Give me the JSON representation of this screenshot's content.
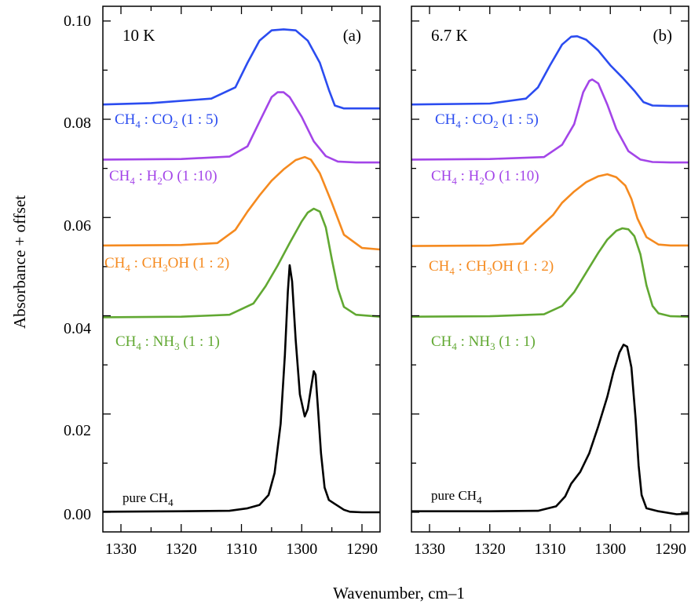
{
  "chart_data": [
    {
      "type": "line",
      "panel_label": "(a)",
      "temperature": "10 K",
      "ylabel": "Absorbance + offset",
      "xlim": [
        1333,
        1287
      ],
      "ylim": [
        -0.004,
        0.103
      ],
      "x_ticks": [
        1330,
        1320,
        1310,
        1300,
        1290
      ],
      "y_ticks": [
        "0.00",
        "0.02",
        "0.04",
        "0.06",
        "0.08",
        "0.10"
      ],
      "series": [
        {
          "name": "CH4 : CO2 (1 : 5)",
          "color": "#2b4cf0",
          "x": [
            1333,
            1325,
            1315,
            1311,
            1309,
            1307,
            1305,
            1303,
            1301,
            1299,
            1297,
            1295.5,
            1294.5,
            1293,
            1287
          ],
          "y": [
            0.083,
            0.0833,
            0.0842,
            0.0865,
            0.0915,
            0.096,
            0.0981,
            0.0983,
            0.0981,
            0.096,
            0.0915,
            0.086,
            0.0828,
            0.0822,
            0.0822
          ]
        },
        {
          "name": "CH4 : H2O (1 :10)",
          "color": "#a345e8",
          "x": [
            1333,
            1320,
            1312,
            1309,
            1307,
            1305,
            1304,
            1303,
            1302,
            1300,
            1298,
            1296,
            1294,
            1291,
            1287
          ],
          "y": [
            0.0718,
            0.0719,
            0.0724,
            0.0745,
            0.0795,
            0.0845,
            0.0855,
            0.0855,
            0.0845,
            0.0805,
            0.0755,
            0.0725,
            0.0714,
            0.0712,
            0.0712
          ]
        },
        {
          "name": "CH4 : CH3OH (1 : 2)",
          "color": "#f58a1f",
          "x": [
            1333,
            1320,
            1314,
            1311,
            1309,
            1307,
            1305,
            1303,
            1301,
            1299.5,
            1298.5,
            1297,
            1295,
            1293,
            1290,
            1287
          ],
          "y": [
            0.0543,
            0.0544,
            0.0548,
            0.0575,
            0.0612,
            0.0645,
            0.0675,
            0.0698,
            0.0717,
            0.0723,
            0.0718,
            0.069,
            0.063,
            0.0565,
            0.0538,
            0.0535
          ]
        },
        {
          "name": "CH4 : NH3 (1 : 1)",
          "color": "#61a832",
          "x": [
            1333,
            1320,
            1312,
            1308,
            1306,
            1304,
            1302,
            1300,
            1299,
            1298,
            1297,
            1296,
            1295,
            1294,
            1293,
            1291,
            1287
          ],
          "y": [
            0.0397,
            0.0398,
            0.0402,
            0.0425,
            0.046,
            0.0502,
            0.0548,
            0.0592,
            0.061,
            0.0618,
            0.0612,
            0.058,
            0.0515,
            0.0455,
            0.0418,
            0.0402,
            0.0398
          ]
        },
        {
          "name": "pure CH4",
          "color": "#000000",
          "x": [
            1333,
            1320,
            1312,
            1309,
            1307,
            1305.5,
            1304.5,
            1303.5,
            1302.8,
            1302.3,
            1302,
            1301.6,
            1301,
            1300.3,
            1299.5,
            1299,
            1298.5,
            1298,
            1297.7,
            1297.3,
            1296.8,
            1296.2,
            1295.5,
            1294.5,
            1294,
            1293,
            1292,
            1290,
            1287
          ],
          "y": [
            0.0001,
            0.0002,
            0.0003,
            0.0008,
            0.0015,
            0.0035,
            0.008,
            0.018,
            0.032,
            0.045,
            0.0503,
            0.047,
            0.035,
            0.024,
            0.0195,
            0.021,
            0.025,
            0.0287,
            0.028,
            0.021,
            0.012,
            0.005,
            0.0025,
            0.0017,
            0.0013,
            0.0005,
            0.0001,
            0.0,
            0.0
          ]
        }
      ]
    },
    {
      "type": "line",
      "panel_label": "(b)",
      "temperature": "6.7 K",
      "xlim": [
        1333,
        1287
      ],
      "ylim": [
        -0.004,
        0.103
      ],
      "x_ticks": [
        1330,
        1320,
        1310,
        1300,
        1290
      ],
      "series": [
        {
          "name": "CH4 : CO2 (1 : 5)",
          "color": "#2b4cf0",
          "x": [
            1333,
            1320,
            1314,
            1312,
            1310,
            1308,
            1306.5,
            1305.5,
            1304,
            1302,
            1300,
            1298,
            1296,
            1294.5,
            1293,
            1290,
            1287
          ],
          "y": [
            0.083,
            0.0832,
            0.0842,
            0.0865,
            0.091,
            0.0952,
            0.0968,
            0.0969,
            0.0962,
            0.094,
            0.091,
            0.0885,
            0.0858,
            0.0835,
            0.0828,
            0.0827,
            0.0827
          ]
        },
        {
          "name": "CH4 : H2O (1 :10)",
          "color": "#a345e8",
          "x": [
            1333,
            1320,
            1311,
            1308,
            1306,
            1304.5,
            1303.5,
            1303,
            1302,
            1300.5,
            1299,
            1297,
            1295,
            1293,
            1290,
            1287
          ],
          "y": [
            0.0718,
            0.0719,
            0.0723,
            0.0748,
            0.079,
            0.0855,
            0.0878,
            0.0881,
            0.0873,
            0.083,
            0.078,
            0.0735,
            0.0718,
            0.0713,
            0.0712,
            0.0712
          ]
        },
        {
          "name": "CH4 : CH3OH (1 : 2)",
          "color": "#f58a1f",
          "x": [
            1333,
            1320,
            1314.5,
            1313,
            1311,
            1309.5,
            1308,
            1306,
            1304,
            1302,
            1300.5,
            1299,
            1297.5,
            1296.5,
            1295.5,
            1294,
            1292,
            1290,
            1287
          ],
          "y": [
            0.0542,
            0.0543,
            0.0547,
            0.0565,
            0.0588,
            0.0605,
            0.063,
            0.0653,
            0.0672,
            0.0684,
            0.0688,
            0.0682,
            0.0665,
            0.0638,
            0.0598,
            0.056,
            0.0545,
            0.0543,
            0.0543
          ]
        },
        {
          "name": "CH4 : NH3 (1 : 1)",
          "color": "#61a832",
          "x": [
            1333,
            1320,
            1311,
            1308,
            1306,
            1304,
            1302,
            1300.5,
            1299,
            1298,
            1297,
            1296,
            1295,
            1294,
            1293,
            1292,
            1290,
            1287
          ],
          "y": [
            0.0398,
            0.0399,
            0.0403,
            0.042,
            0.0448,
            0.0488,
            0.0528,
            0.0555,
            0.0573,
            0.0578,
            0.0576,
            0.0562,
            0.0525,
            0.0462,
            0.042,
            0.0405,
            0.0399,
            0.0398
          ]
        },
        {
          "name": "pure CH4",
          "color": "#000000",
          "x": [
            1333,
            1320,
            1312,
            1309,
            1307.5,
            1306.5,
            1305,
            1303.5,
            1302,
            1300.5,
            1299.5,
            1298.5,
            1297.8,
            1297.2,
            1296.5,
            1295.8,
            1295.3,
            1294.8,
            1294,
            1292,
            1289,
            1287
          ],
          "y": [
            0.0002,
            0.0002,
            0.0003,
            0.0012,
            0.0032,
            0.0058,
            0.0082,
            0.012,
            0.0175,
            0.0235,
            0.0285,
            0.0325,
            0.0341,
            0.0337,
            0.0295,
            0.019,
            0.0095,
            0.0035,
            0.0008,
            0.0002,
            -0.0004,
            -0.0003
          ]
        }
      ]
    }
  ],
  "xlabel": "Wavenumber, cm–1",
  "series_labels": {
    "co2": {
      "a": "CH",
      "s1": "4",
      "b": " : CO",
      "s2": "2",
      "c": " (1 : 5)"
    },
    "h2o": {
      "a": "CH",
      "s1": "4",
      "b": " : H",
      "s2": "2",
      "c": "O (1 :10)"
    },
    "ch3oh": {
      "a": "CH",
      "s1": "4",
      "b": " : CH",
      "s2": "3",
      "c": "OH (1 : 2)"
    },
    "nh3": {
      "a": "CH",
      "s1": "4",
      "b": " : NH",
      "s2": "3",
      "c": " (1 : 1)"
    },
    "pure": {
      "a": "pure CH",
      "s1": "4"
    }
  }
}
